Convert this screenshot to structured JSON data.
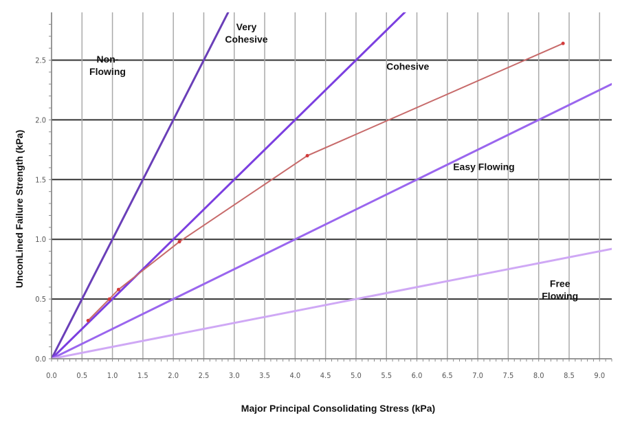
{
  "chart_data": {
    "type": "line",
    "xlabel": "Major Principal Consolidating Stress (kPa)",
    "ylabel": "UnconLined Failure Strength (kPa)",
    "xlim": [
      0,
      9.2
    ],
    "ylim": [
      0,
      2.9
    ],
    "x_ticks": [
      "0.0",
      "0.5",
      "1.0",
      "1.5",
      "2.0",
      "2.5",
      "3.0",
      "3.5",
      "4.0",
      "4.5",
      "5.0",
      "5.5",
      "6.0",
      "6.5",
      "7.0",
      "7.5",
      "8.0",
      "8.5",
      "9.0"
    ],
    "y_ticks": [
      "0.0",
      "0.5",
      "1.0",
      "1.5",
      "2.0",
      "2.5"
    ],
    "grid": true,
    "reference_lines": [
      {
        "ratio": 1.0,
        "color": "#6a3fb8"
      },
      {
        "ratio": 0.5,
        "color": "#7b3fe0"
      },
      {
        "ratio": 0.25,
        "color": "#9a66ee"
      },
      {
        "ratio": 0.1,
        "color": "#cfa8f5"
      }
    ],
    "series": [
      {
        "color": "#c76a6a",
        "x": [
          0.6,
          0.95,
          1.1,
          2.1,
          4.2,
          8.4
        ],
        "y": [
          0.32,
          0.5,
          0.58,
          0.98,
          1.7,
          2.64
        ]
      }
    ],
    "region_labels": [
      {
        "text": "Non-\nFlowing",
        "x": 0.92,
        "y": 2.48
      },
      {
        "text": "Very\nCohesive",
        "x": 3.2,
        "y": 2.75
      },
      {
        "text": "Cohesive",
        "x": 5.85,
        "y": 2.42
      },
      {
        "text": "Easy Flowing",
        "x": 7.1,
        "y": 1.58
      },
      {
        "text": "Free\nFlowing",
        "x": 8.35,
        "y": 0.6
      }
    ]
  }
}
